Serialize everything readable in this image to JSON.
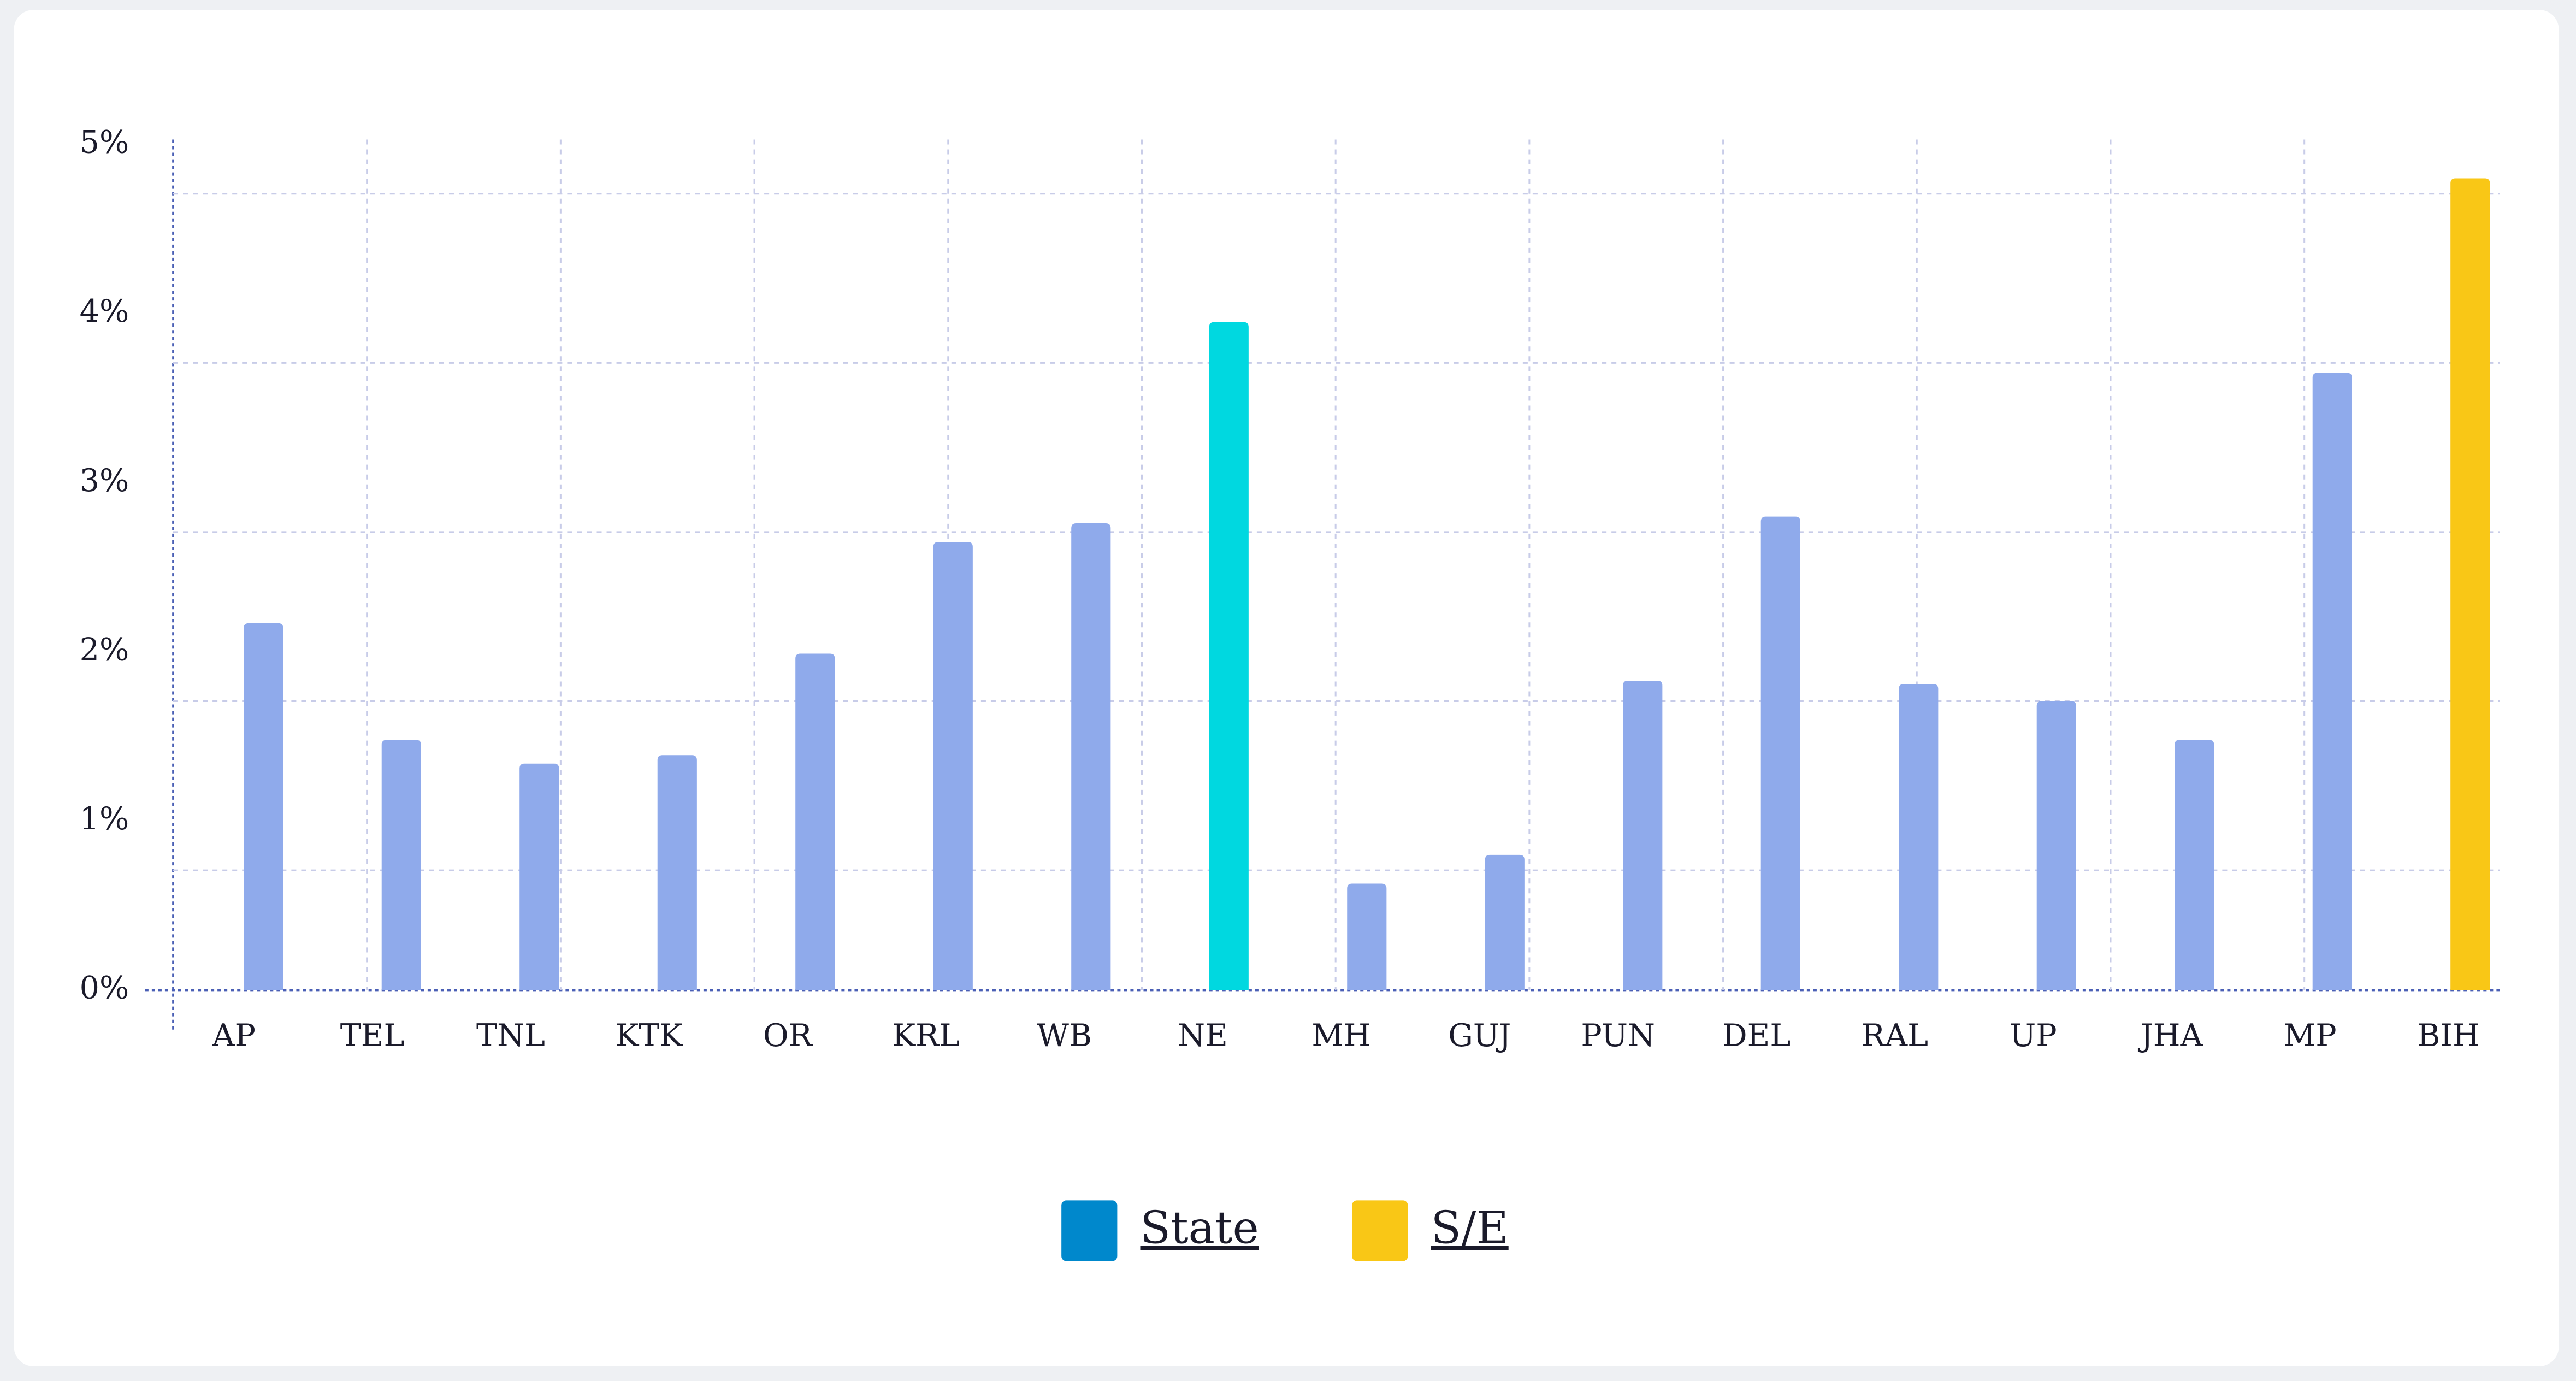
{
  "chart_data": {
    "type": "bar",
    "categories": [
      "AP",
      "TEL",
      "TNL",
      "KTK",
      "OR",
      "KRL",
      "WB",
      "NE",
      "MH",
      "GUJ",
      "PUN",
      "DEL",
      "RAL",
      "UP",
      "JHA",
      "MP",
      "BIH"
    ],
    "values": [
      2.17,
      1.48,
      1.34,
      1.39,
      1.99,
      2.65,
      2.76,
      3.95,
      0.63,
      0.8,
      1.83,
      2.8,
      1.81,
      1.71,
      1.48,
      3.65,
      4.8
    ],
    "colors": [
      "#8faaeb",
      "#8faaeb",
      "#8faaeb",
      "#8faaeb",
      "#8faaeb",
      "#8faaeb",
      "#8faaeb",
      "#00d8e0",
      "#8faaeb",
      "#8faaeb",
      "#8faaeb",
      "#8faaeb",
      "#8faaeb",
      "#8faaeb",
      "#8faaeb",
      "#8faaeb",
      "#f9c716"
    ],
    "ylim": [
      0,
      5
    ],
    "yticks": [
      {
        "value": 0,
        "label": "0%"
      },
      {
        "value": 1,
        "label": "1%"
      },
      {
        "value": 2,
        "label": "2%"
      },
      {
        "value": 3,
        "label": "3%"
      },
      {
        "value": 4,
        "label": "4%"
      },
      {
        "value": 5,
        "label": "5%"
      }
    ],
    "grid": true,
    "legend": [
      {
        "name": "State",
        "color": "#0088cc"
      },
      {
        "name": "S/E",
        "color": "#f9c716"
      }
    ]
  }
}
